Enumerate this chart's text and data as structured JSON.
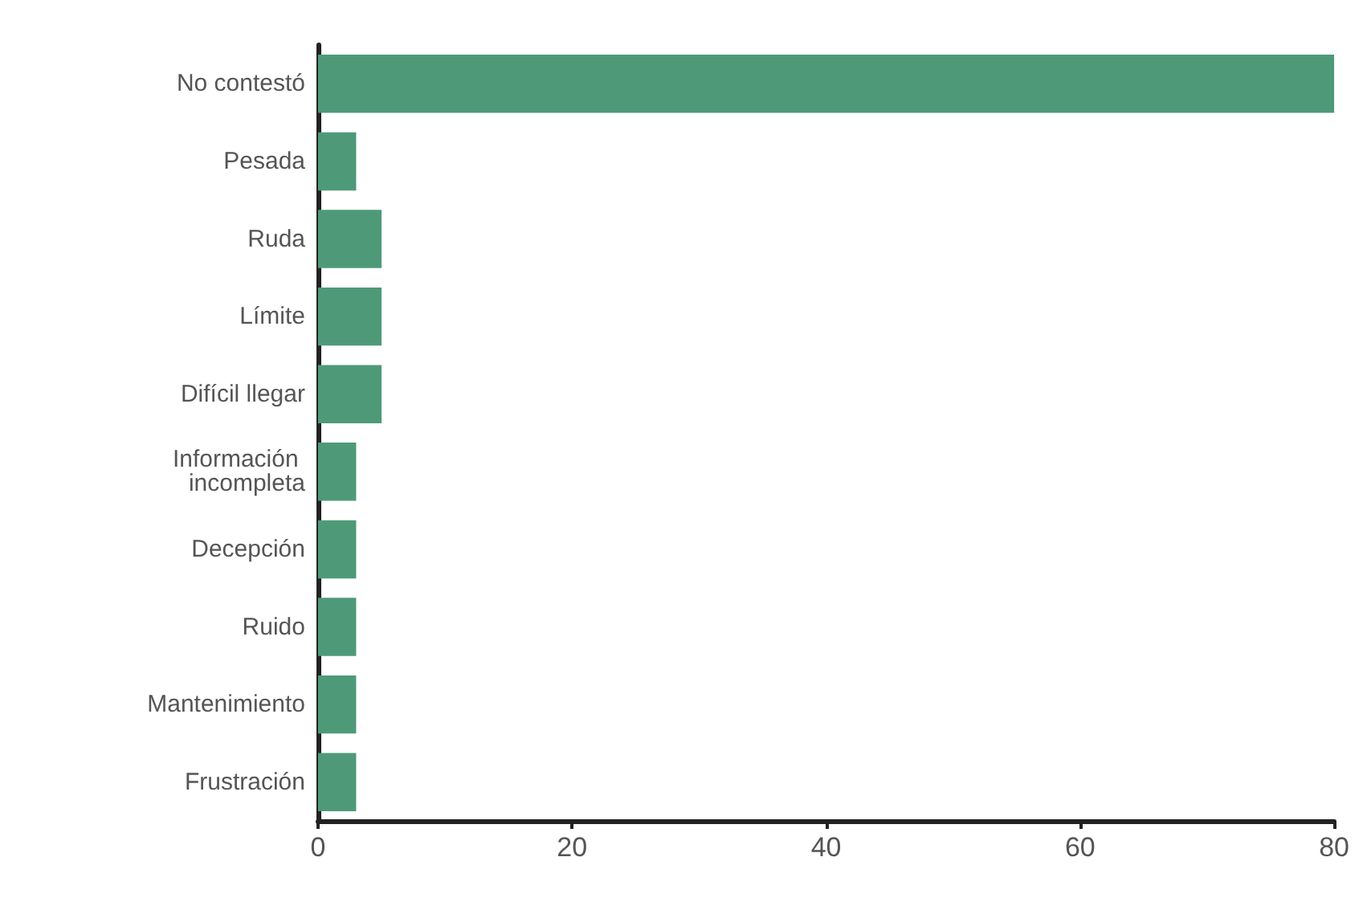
{
  "chart_data": {
    "type": "bar",
    "orientation": "horizontal",
    "categories": [
      "No contestó",
      "Pesada",
      "Ruda",
      "Límite",
      "Difícil llegar",
      "Información incompleta",
      "Decepción",
      "Ruido",
      "Mantenimiento",
      "Frustración"
    ],
    "values": [
      80,
      3,
      5,
      5,
      5,
      3,
      3,
      3,
      3,
      3
    ],
    "color": "#4e9a78",
    "xlim": [
      0,
      80
    ],
    "xticks": [
      0,
      20,
      40,
      60,
      80
    ],
    "grid": false
  }
}
